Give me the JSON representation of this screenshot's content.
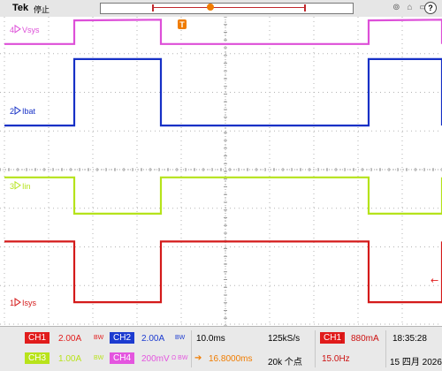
{
  "header": {
    "brand": "Tek",
    "status": "停止",
    "trigger_marker": "T"
  },
  "chart_data": {
    "type": "line",
    "title": "",
    "xlabel": "",
    "ylabel": "",
    "grid": true,
    "x_divisions": 10,
    "y_divisions": 8,
    "timebase_ms_per_div": 10.0,
    "x_unit": "ms",
    "xlim": [
      -50,
      50
    ],
    "period_ms": 66.7,
    "series": [
      {
        "name": "Vsys",
        "label": "Vsys",
        "marker": "4",
        "channel": "CH4",
        "color": "#dd4fd8",
        "scale_mV_per_div": 200,
        "x": [
          -50,
          -34.2,
          -34.2,
          -14.6,
          -14.6,
          32.4,
          32.4,
          52.6,
          52.6
        ],
        "y_div": [
          3.25,
          3.25,
          3.86,
          3.88,
          3.25,
          3.25,
          3.86,
          3.88,
          3.25
        ]
      },
      {
        "name": "Ibat",
        "label": "Ibat",
        "marker": "2",
        "channel": "CH2",
        "color": "#1630c6",
        "scale_A_per_div": 2.0,
        "x": [
          -50,
          -34.2,
          -34.2,
          -14.6,
          -14.6,
          32.4,
          32.4,
          52.6,
          52.6
        ],
        "y_div": [
          1.14,
          1.14,
          2.86,
          2.86,
          1.14,
          1.14,
          2.86,
          2.86,
          1.14
        ]
      },
      {
        "name": "Iin",
        "label": "Iin",
        "marker": "3",
        "channel": "CH3",
        "color": "#b5e31a",
        "scale_A_per_div": 1.0,
        "x": [
          -50,
          -34.2,
          -34.2,
          -14.6,
          -14.6,
          32.4,
          32.4,
          52.6,
          52.6
        ],
        "y_div": [
          -0.2,
          -0.2,
          -1.14,
          -1.14,
          -0.2,
          -0.2,
          -1.14,
          -1.14,
          -0.2
        ]
      },
      {
        "name": "Isys",
        "label": "Isys",
        "marker": "1",
        "channel": "CH1",
        "color": "#d41a1a",
        "scale_A_per_div": 2.0,
        "x": [
          -50,
          -34.2,
          -34.2,
          -14.6,
          -14.6,
          32.4,
          32.4,
          52.6,
          52.6
        ],
        "y_div": [
          -1.86,
          -1.86,
          -3.43,
          -3.43,
          -1.86,
          -1.86,
          -3.43,
          -3.43,
          -1.86
        ]
      }
    ]
  },
  "channels": [
    {
      "name": "CH1",
      "scale": "2.00A",
      "bw": "BW",
      "color": "#e11c1c",
      "text_color": "#ffffff"
    },
    {
      "name": "CH2",
      "scale": "2.00A",
      "bw": "BW",
      "color": "#1c3bd0",
      "text_color": "#ffffff"
    },
    {
      "name": "CH3",
      "scale": "1.00A",
      "bw": "BW",
      "color": "#b8e31a",
      "text_color": "#ffffff"
    },
    {
      "name": "CH4",
      "scale": "200mV",
      "bw": "Ω BW",
      "color": "#e455df",
      "text_color": "#ffffff"
    }
  ],
  "acquisition": {
    "timebase": "10.0ms",
    "position": "16.8000ms",
    "sample_rate": "125kS/s",
    "record_length": "20k 个点"
  },
  "trigger": {
    "source": "CH1",
    "level": "880mA",
    "frequency": "15.0Hz"
  },
  "clock": {
    "time": "18:35:28",
    "date": "15 四月 2026"
  },
  "colors": {
    "grid": "#b3b3b3",
    "trigger_orange": "#f07c00",
    "text_red": "#cc1010",
    "text_blue": "#1c3bd0"
  }
}
